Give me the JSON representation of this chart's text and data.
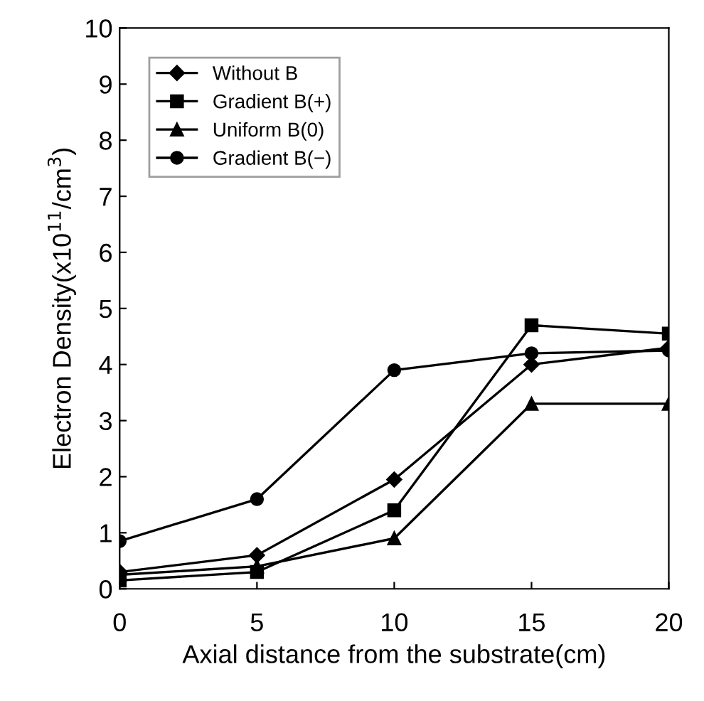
{
  "chart_data": {
    "type": "line",
    "xlabel": "Axial distance from the substrate(cm)",
    "ylabel": "Electron Density(x10$^{11}$/cm$^{3}$)",
    "x": [
      0,
      5,
      10,
      15,
      20
    ],
    "series": [
      {
        "name": "Without B",
        "color": "#000000",
        "marker": "diamond",
        "values": [
          0.3,
          0.6,
          1.95,
          4.0,
          4.3
        ]
      },
      {
        "name": "Gradient B(+)",
        "color": "#000000",
        "marker": "square",
        "values": [
          0.15,
          0.3,
          1.4,
          4.7,
          4.55
        ]
      },
      {
        "name": "Uniform B(0)",
        "color": "#000000",
        "marker": "triangle",
        "values": [
          0.25,
          0.4,
          0.9,
          3.3,
          3.3
        ]
      },
      {
        "name": "Gradient B(−)",
        "color": "#000000",
        "marker": "circle",
        "values": [
          0.85,
          1.6,
          3.9,
          4.2,
          4.25
        ]
      }
    ],
    "xlim": [
      0,
      20
    ],
    "xticks": [
      0,
      5,
      10,
      15,
      20
    ],
    "ylim": [
      0,
      10
    ],
    "yticks": [
      0,
      1,
      2,
      3,
      4,
      5,
      6,
      7,
      8,
      9,
      10
    ],
    "grid": false,
    "legend": "top left",
    "line_style": "solid"
  }
}
